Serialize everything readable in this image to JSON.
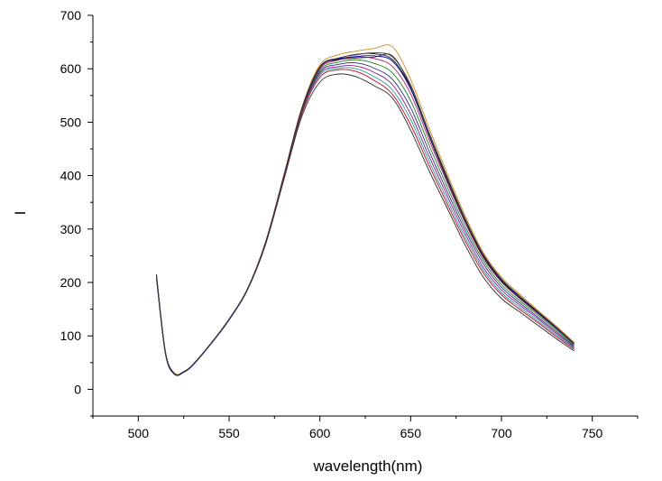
{
  "chart_data": {
    "type": "line",
    "title": "",
    "xlabel": "wavelength(nm)",
    "ylabel": "I",
    "xlim": [
      475,
      775
    ],
    "ylim": [
      -50,
      700
    ],
    "x_ticks": [
      500,
      550,
      600,
      650,
      700,
      750
    ],
    "y_ticks": [
      0,
      100,
      200,
      300,
      400,
      500,
      600,
      700
    ],
    "grid": false,
    "legend": "none",
    "line_width": 0.9,
    "x": [
      510,
      515,
      520,
      525,
      530,
      540,
      550,
      560,
      570,
      580,
      590,
      600,
      610,
      620,
      630,
      640,
      650,
      660,
      670,
      680,
      690,
      700,
      710,
      720,
      730,
      740
    ],
    "series": [
      {
        "color": "#2a2a2a",
        "values": [
          215,
          70,
          30,
          32,
          45,
          85,
          130,
          185,
          270,
          390,
          510,
          575,
          590,
          585,
          568,
          545,
          485,
          410,
          340,
          270,
          210,
          170,
          145,
          120,
          95,
          72
        ]
      },
      {
        "color": "#c4001b",
        "values": [
          212,
          67,
          29,
          33,
          46,
          86,
          131,
          186,
          272,
          393,
          515,
          584,
          598,
          595,
          578,
          552,
          495,
          420,
          348,
          278,
          218,
          177,
          150,
          125,
          99,
          75
        ]
      },
      {
        "color": "#1aa0a0",
        "values": [
          210,
          66,
          28,
          32,
          46,
          86,
          132,
          187,
          273,
          395,
          518,
          588,
          601,
          600,
          585,
          560,
          505,
          428,
          355,
          284,
          223,
          181,
          154,
          128,
          102,
          77
        ]
      },
      {
        "color": "#8a1a8a",
        "values": [
          208,
          65,
          28,
          32,
          45,
          85,
          130,
          186,
          272,
          394,
          519,
          591,
          604,
          605,
          593,
          570,
          515,
          437,
          363,
          291,
          228,
          186,
          158,
          132,
          105,
          79
        ]
      },
      {
        "color": "#2d2d8a",
        "values": [
          213,
          68,
          29,
          32,
          46,
          86,
          131,
          187,
          274,
          396,
          520,
          594,
          608,
          611,
          601,
          580,
          527,
          447,
          371,
          298,
          235,
          191,
          162,
          135,
          108,
          81
        ]
      },
      {
        "color": "#1e7a1e",
        "values": [
          209,
          66,
          28,
          33,
          45,
          86,
          131,
          186,
          273,
          396,
          522,
          597,
          612,
          617,
          610,
          592,
          540,
          458,
          380,
          305,
          241,
          196,
          166,
          139,
          111,
          83
        ]
      },
      {
        "color": "#b21a6e",
        "values": [
          211,
          67,
          29,
          32,
          46,
          85,
          130,
          186,
          274,
          397,
          523,
          600,
          616,
          622,
          619,
          604,
          553,
          468,
          388,
          312,
          246,
          201,
          170,
          142,
          114,
          85
        ]
      },
      {
        "color": "#1a1a1a",
        "values": [
          214,
          68,
          29,
          33,
          46,
          86,
          131,
          187,
          274,
          398,
          524,
          602,
          619,
          627,
          628,
          617,
          565,
          478,
          396,
          318,
          251,
          205,
          174,
          145,
          116,
          86
        ]
      },
      {
        "color": "#4a4a4a",
        "values": [
          211,
          67,
          29,
          32,
          46,
          86,
          131,
          187,
          275,
          398,
          525,
          604,
          620,
          626,
          630,
          622,
          570,
          482,
          399,
          320,
          253,
          207,
          175,
          146,
          117,
          87
        ]
      },
      {
        "color": "#0000aa",
        "values": [
          208,
          66,
          28,
          32,
          45,
          85,
          130,
          186,
          273,
          397,
          525,
          603,
          618,
          623,
          624,
          614,
          562,
          475,
          392,
          315,
          249,
          203,
          172,
          144,
          115,
          85
        ]
      },
      {
        "color": "#d4891a",
        "values": [
          212,
          68,
          30,
          33,
          46,
          86,
          131,
          187,
          275,
          399,
          527,
          607,
          626,
          633,
          638,
          641,
          580,
          490,
          405,
          325,
          256,
          210,
          178,
          148,
          119,
          88
        ]
      },
      {
        "color": "#333333",
        "values": [
          213,
          68,
          29,
          33,
          46,
          86,
          131,
          187,
          274,
          398,
          525,
          603,
          617,
          620,
          622,
          624,
          566,
          477,
          393,
          315,
          248,
          202,
          171,
          143,
          114,
          85
        ]
      }
    ]
  }
}
